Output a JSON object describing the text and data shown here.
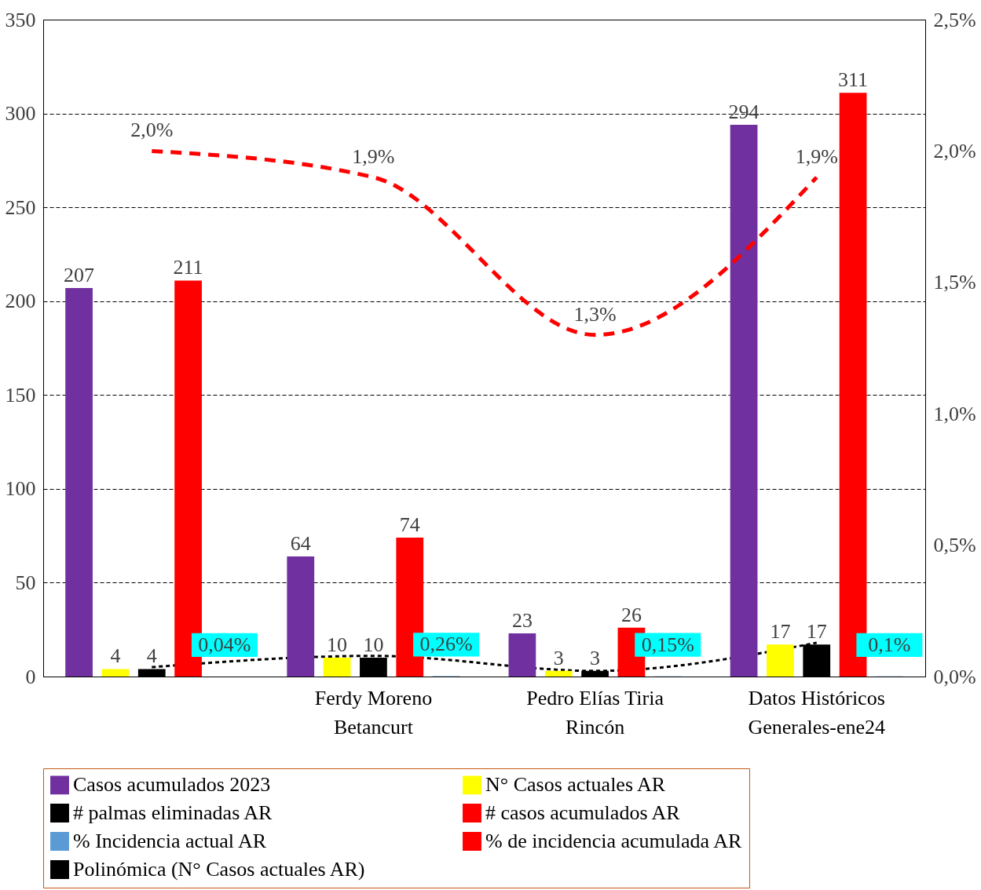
{
  "chart_data": {
    "type": "bar",
    "categories": [
      null,
      "Ferdy Moreno Betancurt",
      "Pedro Elías Tiria Rincón",
      "Datos Históricos Generales-ene24"
    ],
    "series": [
      {
        "name": "Casos acumulados 2023",
        "color": "#7030a0",
        "values": [
          207,
          64,
          23,
          294
        ],
        "value_labels": [
          "207",
          "64",
          "23",
          "294"
        ]
      },
      {
        "name": "N° Casos actuales AR",
        "color": "#ffff00",
        "values": [
          4,
          10,
          3,
          17
        ],
        "value_labels": [
          "4",
          "10",
          "3",
          "17"
        ]
      },
      {
        "name": "# palmas eliminadas AR",
        "color": "#000000",
        "values": [
          4,
          10,
          3,
          17
        ],
        "value_labels": [
          "4",
          "10",
          "3",
          "17"
        ]
      },
      {
        "name": "# casos acumulados AR",
        "color": "#ff0000",
        "values": [
          211,
          74,
          26,
          311
        ],
        "value_labels": [
          "211",
          "74",
          "26",
          "311"
        ]
      },
      {
        "name": "% Incidencia actual AR",
        "color": "#5b9bd5",
        "values": [
          0.04,
          0.26,
          0.15,
          0.1
        ],
        "value_labels": [
          "0,04%",
          "0,26%",
          "0,15%",
          "0,1%"
        ]
      },
      {
        "name": "% de incidencia acumulada AR",
        "type": "line",
        "color": "#ff0000",
        "line_style": "dashed",
        "axis": "y2",
        "values": [
          2.0,
          1.9,
          1.3,
          1.9
        ],
        "value_labels": [
          "2,0%",
          "1,9%",
          "1,3%",
          "1,9%"
        ]
      },
      {
        "name": "Polinómica (N° Casos actuales AR)",
        "type": "line",
        "color": "#000000",
        "line_style": "dotted",
        "values": [
          5,
          11,
          3,
          18
        ]
      }
    ],
    "ylim": [
      0,
      350
    ],
    "yticks": [
      0,
      50,
      100,
      150,
      200,
      250,
      300,
      350
    ],
    "y2lim": [
      0,
      2.5
    ],
    "y2ticks": [
      {
        "value": 0,
        "label": "0,0%"
      },
      {
        "value": 0.5,
        "label": "0,5%"
      },
      {
        "value": 1,
        "label": "1,0%"
      },
      {
        "value": 1.5,
        "label": "1,5%"
      },
      {
        "value": 2,
        "label": "2,0%"
      },
      {
        "value": 2.5,
        "label": "2,5%"
      }
    ],
    "grid": "y",
    "legend": "bottom"
  }
}
